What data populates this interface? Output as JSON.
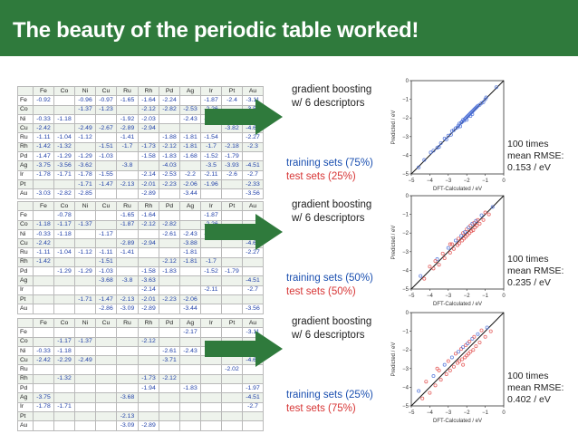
{
  "title": "The beauty of the periodic table worked!",
  "table_columns": [
    "",
    "Fe",
    "Co",
    "Ni",
    "Cu",
    "Ru",
    "Rh",
    "Pd",
    "Ag",
    "Ir",
    "Pt",
    "Au"
  ],
  "table_rows": [
    "Fe",
    "Co",
    "Ni",
    "Cu",
    "Ru",
    "Rh",
    "Pd",
    "Ag",
    "Ir",
    "Pt",
    "Au"
  ],
  "panels": [
    {
      "table": [
        [
          "-0.92",
          "",
          "-0.96",
          "-0.97",
          "-1.65",
          "-1.64",
          "-2.24",
          "",
          "-1.87",
          "-2.4",
          "-3.11"
        ],
        [
          "",
          "",
          "-1.37",
          "-1.23",
          "",
          "-2.12",
          "-2.82",
          "-2.53",
          "-2.26",
          "",
          "-3.56"
        ],
        [
          "-0.33",
          "-1.18",
          "",
          "",
          "-1.92",
          "-2.03",
          "",
          "-2.43",
          "-2.15",
          "-2.82",
          "-3.39"
        ],
        [
          "-2.42",
          "",
          "-2.49",
          "-2.67",
          "-2.89",
          "-2.94",
          "",
          "",
          "",
          "-3.82",
          "-4.63"
        ],
        [
          "-1.11",
          "-1.04",
          "-1.12",
          "",
          "-1.41",
          "",
          "-1.88",
          "-1.81",
          "-1.54",
          "",
          "-2.27"
        ],
        [
          "-1.42",
          "-1.32",
          "",
          "-1.51",
          "-1.7",
          "-1.73",
          "-2.12",
          "-1.81",
          "-1.7",
          "-2.18",
          "-2.3"
        ],
        [
          "-1.47",
          "-1.29",
          "-1.29",
          "-1.03",
          "",
          "-1.58",
          "-1.83",
          "-1.68",
          "-1.52",
          "-1.79",
          ""
        ],
        [
          "-3.75",
          "-3.56",
          "-3.62",
          "",
          "-3.8",
          "",
          "-4.03",
          "",
          "-3.5",
          "-3.93",
          "-4.51"
        ],
        [
          "-1.78",
          "-1.71",
          "-1.78",
          "-1.55",
          "",
          "-2.14",
          "-2.53",
          "-2.2",
          "-2.11",
          "-2.6",
          "-2.7"
        ],
        [
          "",
          "",
          "-1.71",
          "-1.47",
          "-2.13",
          "-2.01",
          "-2.23",
          "-2.06",
          "-1.96",
          "",
          "-2.33"
        ],
        [
          "-3.03",
          "-2.82",
          "-2.85",
          "",
          "",
          "-2.89",
          "",
          "-3.44",
          "",
          "",
          "-3.56"
        ]
      ],
      "model_line1": "gradient boosting",
      "model_line2": "w/ 6 descriptors",
      "training": "training sets (75%)",
      "test": "test sets (25%)",
      "rmse_line1": "100 times",
      "rmse_line2": "mean RMSE:",
      "rmse_line3": "0.153 / eV",
      "scatter": [
        [
          -4.6,
          -4.65
        ],
        [
          -4.3,
          -4.25
        ],
        [
          -3.95,
          -3.85
        ],
        [
          -3.8,
          -3.75
        ],
        [
          -3.6,
          -3.6
        ],
        [
          -3.5,
          -3.55
        ],
        [
          -3.4,
          -3.35
        ],
        [
          -3.2,
          -3.1
        ],
        [
          -3.1,
          -3.15
        ],
        [
          -3.0,
          -2.95
        ],
        [
          -2.85,
          -2.9
        ],
        [
          -2.8,
          -2.7
        ],
        [
          -2.7,
          -2.65
        ],
        [
          -2.6,
          -2.55
        ],
        [
          -2.5,
          -2.5
        ],
        [
          -2.45,
          -2.4
        ],
        [
          -2.4,
          -2.3
        ],
        [
          -2.3,
          -2.25
        ],
        [
          -2.25,
          -2.2
        ],
        [
          -2.2,
          -2.1
        ],
        [
          -2.15,
          -2.15
        ],
        [
          -2.1,
          -2.05
        ],
        [
          -2.05,
          -2.0
        ],
        [
          -2.0,
          -1.95
        ],
        [
          -1.95,
          -1.9
        ],
        [
          -1.9,
          -1.85
        ],
        [
          -1.85,
          -1.8
        ],
        [
          -1.8,
          -1.75
        ],
        [
          -1.75,
          -1.7
        ],
        [
          -1.7,
          -1.65
        ],
        [
          -1.65,
          -1.6
        ],
        [
          -1.6,
          -1.55
        ],
        [
          -1.55,
          -1.5
        ],
        [
          -1.5,
          -1.45
        ],
        [
          -1.45,
          -1.4
        ],
        [
          -1.4,
          -1.35
        ],
        [
          -1.3,
          -1.3
        ],
        [
          -1.2,
          -1.2
        ],
        [
          -1.1,
          -1.15
        ],
        [
          -1.0,
          -1.0
        ],
        [
          -0.95,
          -0.9
        ],
        [
          -0.4,
          -0.35
        ],
        [
          -2.35,
          -2.45
        ],
        [
          -2.0,
          -2.1
        ],
        [
          -1.7,
          -1.8
        ],
        [
          -1.8,
          -1.9
        ]
      ]
    },
    {
      "table": [
        [
          "",
          "-0.78",
          "",
          "",
          "-1.65",
          "-1.64",
          "",
          "",
          "-1.87",
          "",
          ""
        ],
        [
          "-1.18",
          "-1.17",
          "-1.37",
          "",
          "-1.87",
          "-2.12",
          "-2.82",
          "",
          "-2.26",
          "",
          ""
        ],
        [
          "-0.33",
          "-1.18",
          "",
          "-1.17",
          "",
          "",
          "-2.61",
          "-2.43",
          "-2.15",
          "-2.82",
          ""
        ],
        [
          "-2.42",
          "",
          "",
          "",
          "-2.89",
          "-2.94",
          "",
          "-3.88",
          "",
          "",
          "-4.63"
        ],
        [
          "-1.11",
          "-1.04",
          "-1.12",
          "-1.11",
          "-1.41",
          "",
          "",
          "-1.81",
          "",
          "",
          "-2.27"
        ],
        [
          "-1.42",
          "",
          "",
          "-1.51",
          "",
          "",
          "-2.12",
          "-1.81",
          "-1.7",
          "",
          ""
        ],
        [
          "",
          "-1.29",
          "-1.29",
          "-1.03",
          "",
          "-1.58",
          "-1.83",
          "",
          "-1.52",
          "-1.79",
          ""
        ],
        [
          "",
          "",
          "",
          "-3.68",
          "-3.8",
          "-3.63",
          "",
          "",
          "",
          "",
          "-4.51"
        ],
        [
          "",
          "",
          "",
          "",
          "",
          "-2.14",
          "",
          "",
          "-2.11",
          "",
          "-2.7"
        ],
        [
          "",
          "",
          "-1.71",
          "-1.47",
          "-2.13",
          "-2.01",
          "-2.23",
          "-2.06",
          "",
          "",
          ""
        ],
        [
          "",
          "",
          "",
          "-2.86",
          "-3.09",
          "-2.89",
          "",
          "-3.44",
          "",
          "",
          "-3.56"
        ]
      ],
      "model_line1": "gradient boosting",
      "model_line2": "w/ 6 descriptors",
      "training": "training sets (50%)",
      "test": "test sets (50%)",
      "rmse_line1": "100 times",
      "rmse_line2": "mean RMSE:",
      "rmse_line3": "0.235 / eV",
      "scatter": [
        [
          -4.5,
          -4.3
        ],
        [
          -4.3,
          -4.45
        ],
        [
          -4.0,
          -3.8
        ],
        [
          -3.8,
          -3.9
        ],
        [
          -3.6,
          -3.4
        ],
        [
          -3.5,
          -3.7
        ],
        [
          -3.3,
          -3.1
        ],
        [
          -3.2,
          -3.35
        ],
        [
          -3.0,
          -2.8
        ],
        [
          -2.9,
          -3.05
        ],
        [
          -2.8,
          -2.6
        ],
        [
          -2.7,
          -2.85
        ],
        [
          -2.6,
          -2.4
        ],
        [
          -2.5,
          -2.65
        ],
        [
          -2.45,
          -2.3
        ],
        [
          -2.4,
          -2.55
        ],
        [
          -2.3,
          -2.15
        ],
        [
          -2.25,
          -2.4
        ],
        [
          -2.2,
          -2.0
        ],
        [
          -2.15,
          -2.3
        ],
        [
          -2.1,
          -1.95
        ],
        [
          -2.05,
          -2.2
        ],
        [
          -2.0,
          -1.8
        ],
        [
          -1.95,
          -2.1
        ],
        [
          -1.9,
          -1.7
        ],
        [
          -1.85,
          -2.0
        ],
        [
          -1.8,
          -1.6
        ],
        [
          -1.75,
          -1.9
        ],
        [
          -1.7,
          -1.5
        ],
        [
          -1.65,
          -1.85
        ],
        [
          -1.6,
          -1.45
        ],
        [
          -1.55,
          -1.7
        ],
        [
          -1.5,
          -1.35
        ],
        [
          -1.45,
          -1.6
        ],
        [
          -1.4,
          -1.3
        ],
        [
          -1.3,
          -1.5
        ],
        [
          -1.2,
          -1.05
        ],
        [
          -1.1,
          -1.3
        ],
        [
          -1.0,
          -0.9
        ],
        [
          -0.8,
          -1.0
        ],
        [
          -0.6,
          -0.6
        ],
        [
          -2.9,
          -2.6
        ],
        [
          -3.7,
          -3.5
        ]
      ]
    },
    {
      "table": [
        [
          "",
          "",
          "",
          "",
          "",
          "",
          "",
          "-2.17",
          "",
          "",
          "-3.11"
        ],
        [
          "",
          "-1.17",
          "-1.37",
          "",
          "",
          "-2.12",
          "",
          "",
          "",
          "",
          ""
        ],
        [
          "-0.33",
          "-1.18",
          "",
          "",
          "",
          "",
          "-2.61",
          "-2.43",
          "",
          "",
          ""
        ],
        [
          "-2.42",
          "-2.29",
          "-2.49",
          "",
          "",
          "",
          "-3.71",
          "",
          "",
          "",
          "-4.63"
        ],
        [
          "",
          "",
          "",
          "",
          "",
          "",
          "",
          "",
          "",
          "-2.02",
          ""
        ],
        [
          "",
          "-1.32",
          "",
          "",
          "",
          "-1.73",
          "-2.12",
          "",
          "",
          "",
          ""
        ],
        [
          "",
          "",
          "",
          "",
          "",
          "-1.94",
          "",
          "-1.83",
          "",
          "",
          "-1.97"
        ],
        [
          "-3.75",
          "",
          "",
          "",
          "-3.68",
          "",
          "",
          "",
          "",
          "",
          "-4.51"
        ],
        [
          "-1.78",
          "-1.71",
          "",
          "",
          "",
          "",
          "",
          "",
          "",
          "",
          "-2.7"
        ],
        [
          "",
          "",
          "",
          "",
          "-2.13",
          "",
          "",
          "",
          "",
          "",
          ""
        ],
        [
          "",
          "",
          "",
          "",
          "-3.09",
          "-2.89",
          "",
          "",
          "",
          "",
          ""
        ]
      ],
      "model_line1": "gradient boosting",
      "model_line2": "w/ 6 descriptors",
      "training": "training sets (25%)",
      "test": "test sets (75%)",
      "rmse_line1": "100 times",
      "rmse_line2": "mean RMSE:",
      "rmse_line3": "0.402 / eV",
      "scatter": [
        [
          -4.6,
          -4.2
        ],
        [
          -4.4,
          -4.6
        ],
        [
          -4.2,
          -3.7
        ],
        [
          -4.0,
          -4.3
        ],
        [
          -3.8,
          -3.4
        ],
        [
          -3.7,
          -3.9
        ],
        [
          -3.5,
          -3.1
        ],
        [
          -3.4,
          -3.6
        ],
        [
          -3.2,
          -2.8
        ],
        [
          -3.1,
          -3.3
        ],
        [
          -3.0,
          -2.6
        ],
        [
          -2.9,
          -3.1
        ],
        [
          -2.8,
          -2.4
        ],
        [
          -2.7,
          -2.9
        ],
        [
          -2.6,
          -2.2
        ],
        [
          -2.5,
          -2.7
        ],
        [
          -2.45,
          -2.1
        ],
        [
          -2.4,
          -2.6
        ],
        [
          -2.3,
          -1.95
        ],
        [
          -2.25,
          -2.5
        ],
        [
          -2.2,
          -1.85
        ],
        [
          -2.1,
          -2.4
        ],
        [
          -2.05,
          -1.75
        ],
        [
          -2.0,
          -2.3
        ],
        [
          -1.95,
          -1.65
        ],
        [
          -1.9,
          -2.2
        ],
        [
          -1.85,
          -1.55
        ],
        [
          -1.8,
          -2.1
        ],
        [
          -1.7,
          -1.4
        ],
        [
          -1.65,
          -2.0
        ],
        [
          -1.6,
          -1.3
        ],
        [
          -1.5,
          -1.8
        ],
        [
          -1.4,
          -1.15
        ],
        [
          -1.3,
          -1.6
        ],
        [
          -1.2,
          -0.95
        ],
        [
          -1.0,
          -1.3
        ],
        [
          -0.9,
          -0.8
        ],
        [
          -0.7,
          -1.0
        ],
        [
          -3.6,
          -3.0
        ],
        [
          -2.2,
          -2.8
        ]
      ]
    }
  ],
  "chart_data": [
    {
      "type": "scatter",
      "xlabel": "DFT-Calculated / eV",
      "ylabel": "Predicted / eV",
      "xlim": [
        -5,
        0
      ],
      "ylim": [
        -5,
        0
      ],
      "x_ticks": [
        "−5",
        "−4",
        "−3",
        "−2",
        "−1",
        "0"
      ],
      "y_ticks": [
        "0",
        "−1",
        "−2",
        "−3",
        "−4",
        "−5"
      ],
      "series_colors": [
        "#4a6fd8",
        "#e2504f"
      ]
    }
  ],
  "colors": {
    "header": "#2f7a3c",
    "training": "#1a4fb0",
    "test": "#d73535",
    "arrow": "#2f7a3c",
    "cell_value": "#1f3fa8"
  }
}
